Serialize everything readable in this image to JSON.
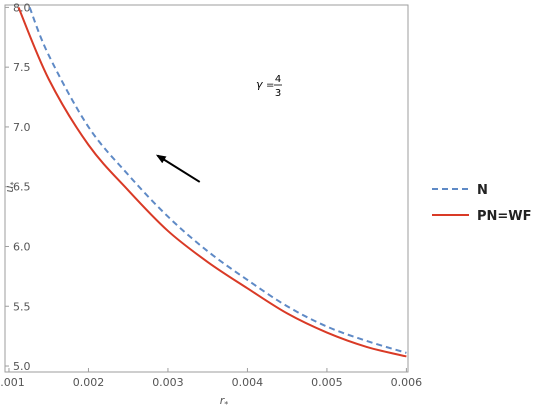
{
  "chart_data": {
    "type": "line",
    "title": "",
    "xlabel": "r",
    "xlabel_sub": "*",
    "ylabel": "u",
    "ylabel_sub": "*",
    "xlim": [
      0.001,
      0.006
    ],
    "ylim": [
      4.95,
      8.02
    ],
    "xticks": [
      "0.001",
      "0.002",
      "0.003",
      "0.004",
      "0.005",
      "0.006"
    ],
    "yticks": [
      "5.0",
      "5.5",
      "6.0",
      "6.5",
      "7.0",
      "7.5",
      "8.0"
    ],
    "annotation": {
      "gamma_symbol": "γ",
      "equals": "=",
      "numerator": "4",
      "denominator": "3"
    },
    "arrow": {
      "from": [
        0.0034,
        6.54
      ],
      "to": [
        0.00287,
        6.76
      ],
      "color": "#000000"
    },
    "series": [
      {
        "name": "N",
        "color": "#5f8ac6",
        "dash": "dashed",
        "x": [
          0.00126,
          0.0015,
          0.002,
          0.0025,
          0.003,
          0.0035,
          0.004,
          0.0045,
          0.005,
          0.0055,
          0.006
        ],
        "y": [
          8.0,
          7.6,
          7.0,
          6.6,
          6.25,
          5.96,
          5.72,
          5.5,
          5.33,
          5.21,
          5.11
        ]
      },
      {
        "name": "PN=WF",
        "color": "#d93a26",
        "dash": "solid",
        "x": [
          0.00112,
          0.0015,
          0.002,
          0.0025,
          0.003,
          0.0035,
          0.004,
          0.0045,
          0.005,
          0.0055,
          0.006
        ],
        "y": [
          8.0,
          7.4,
          6.85,
          6.47,
          6.13,
          5.87,
          5.65,
          5.44,
          5.28,
          5.16,
          5.08
        ]
      }
    ],
    "grid": false,
    "legend_position": "right"
  }
}
